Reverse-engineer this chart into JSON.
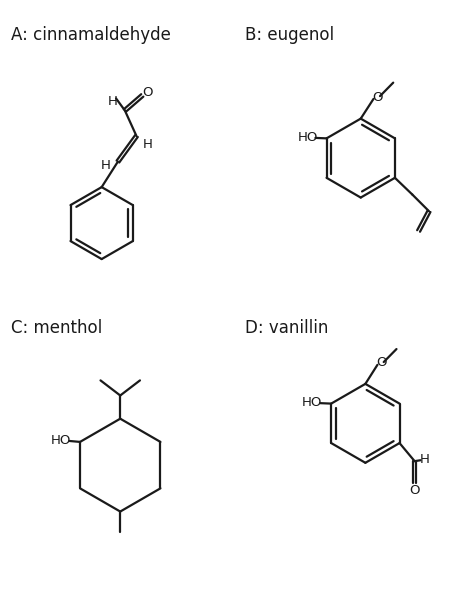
{
  "title_A": "A: cinnamaldehyde",
  "title_B": "B: eugenol",
  "title_C": "C: menthol",
  "title_D": "D: vanillin",
  "bg_color": "#ffffff",
  "line_color": "#1a1a1a",
  "line_width": 1.6,
  "font_size_title": 12,
  "font_size_label": 9.5
}
